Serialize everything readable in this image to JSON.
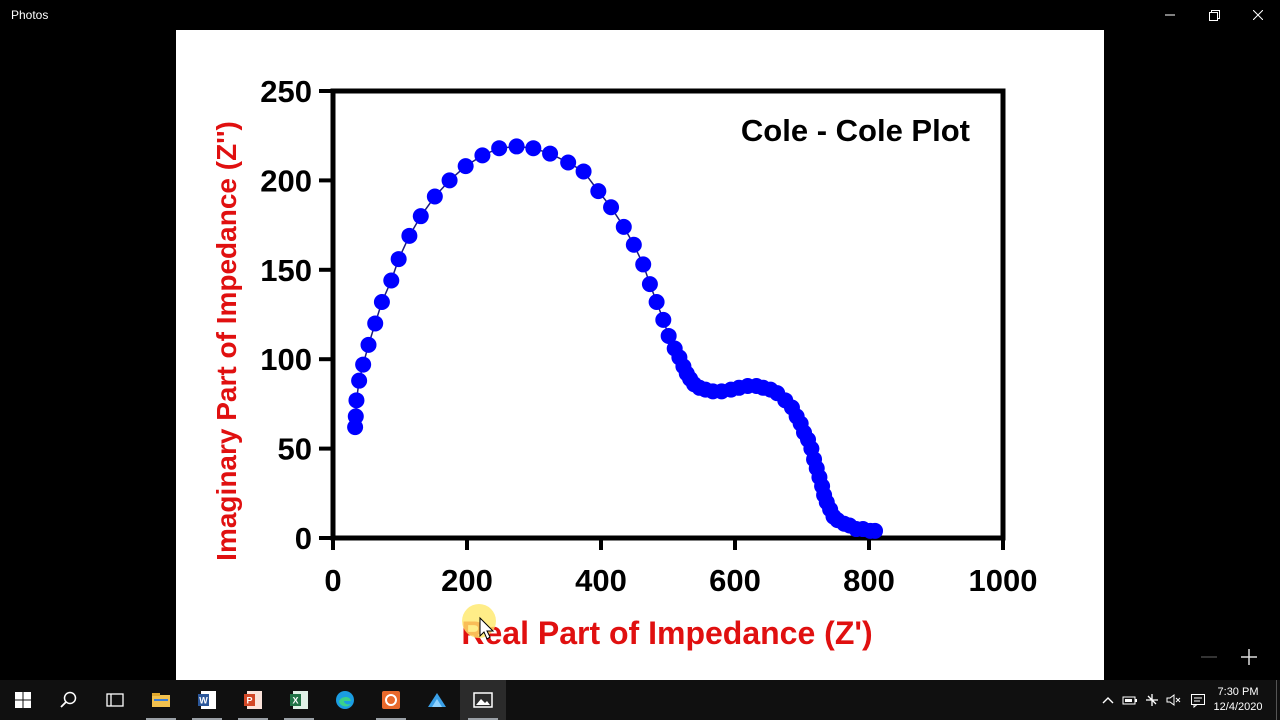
{
  "window": {
    "app_title": "Photos",
    "buttons": {
      "minimize_icon": "minimize-icon",
      "restore_icon": "restore-icon",
      "close_icon": "close-icon"
    }
  },
  "chart_data": {
    "type": "scatter",
    "title": "Cole - Cole Plot",
    "xlabel": "Real Part of Impedance (Z')",
    "ylabel": "Imaginary Part of Impedance (Z'')",
    "xlim": [
      0,
      1000
    ],
    "ylim": [
      0,
      250
    ],
    "x_ticks": [
      0,
      200,
      400,
      600,
      800,
      1000
    ],
    "y_ticks": [
      0,
      50,
      100,
      150,
      200,
      250
    ],
    "grid": false,
    "connected_line": true,
    "marker_color": "#0000ff",
    "label_color": "#e01010",
    "series": [
      {
        "points": [
          [
            33,
            62
          ],
          [
            34,
            68
          ],
          [
            35,
            77
          ],
          [
            39,
            88
          ],
          [
            45,
            97
          ],
          [
            53,
            108
          ],
          [
            63,
            120
          ],
          [
            73,
            132
          ],
          [
            87,
            144
          ],
          [
            98,
            156
          ],
          [
            114,
            169
          ],
          [
            131,
            180
          ],
          [
            152,
            191
          ],
          [
            174,
            200
          ],
          [
            198,
            208
          ],
          [
            223,
            214
          ],
          [
            248,
            218
          ],
          [
            274,
            219
          ],
          [
            299,
            218
          ],
          [
            324,
            215
          ],
          [
            351,
            210
          ],
          [
            374,
            205
          ],
          [
            396,
            194
          ],
          [
            415,
            185
          ],
          [
            434,
            174
          ],
          [
            449,
            164
          ],
          [
            463,
            153
          ],
          [
            473,
            142
          ],
          [
            483,
            132
          ],
          [
            493,
            122
          ],
          [
            501,
            113
          ],
          [
            510,
            106
          ],
          [
            517,
            101
          ],
          [
            523,
            96
          ],
          [
            528,
            92
          ],
          [
            533,
            89
          ],
          [
            539,
            86
          ],
          [
            547,
            84
          ],
          [
            556,
            83
          ],
          [
            567,
            82
          ],
          [
            580,
            82
          ],
          [
            594,
            83
          ],
          [
            606,
            84
          ],
          [
            619,
            85
          ],
          [
            632,
            85
          ],
          [
            642,
            84
          ],
          [
            653,
            83
          ],
          [
            663,
            81
          ],
          [
            675,
            77
          ],
          [
            685,
            73
          ],
          [
            692,
            68
          ],
          [
            698,
            64
          ],
          [
            703,
            59
          ],
          [
            709,
            55
          ],
          [
            714,
            50
          ],
          [
            718,
            44
          ],
          [
            722,
            39
          ],
          [
            726,
            34
          ],
          [
            730,
            29
          ],
          [
            733,
            24
          ],
          [
            737,
            20
          ],
          [
            742,
            16
          ],
          [
            747,
            12
          ],
          [
            753,
            10
          ],
          [
            763,
            8
          ],
          [
            771,
            7
          ],
          [
            781,
            5
          ],
          [
            791,
            5
          ],
          [
            802,
            4
          ],
          [
            809,
            4
          ]
        ]
      }
    ]
  },
  "zoom": {
    "minus_icon": "zoom-out-icon",
    "plus_icon": "zoom-in-icon"
  },
  "taskbar": {
    "items": [
      "start-icon",
      "search-icon",
      "task-view-icon",
      "file-explorer-icon",
      "word-icon",
      "powerpoint-icon",
      "excel-icon",
      "edge-icon",
      "presentation-app-icon",
      "app-icon",
      "photos-icon"
    ],
    "tray": [
      "chevron-up-icon",
      "battery-icon",
      "network-icon",
      "volume-muted-icon",
      "notification-icon"
    ],
    "time": "7:30 PM",
    "date": "12/4/2020"
  }
}
